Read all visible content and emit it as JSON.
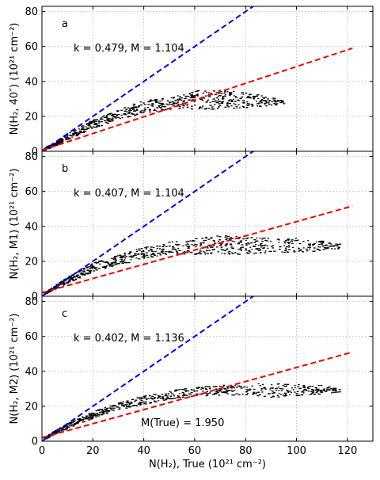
{
  "chart_data": [
    {
      "type": "scatter",
      "panel_label": "a",
      "annotation": "k = 0.479,  M = 1.104",
      "ylabel": "N(H₂, 40″) (10²¹ cm⁻²)",
      "xlabel": "",
      "xlim": [
        0,
        130
      ],
      "ylim": [
        0,
        83
      ],
      "grid": true,
      "lines": [
        {
          "name": "blue dashed",
          "color": "#0000ee",
          "slope": 1.0,
          "intercept": 0.0
        },
        {
          "name": "red dashed",
          "color": "#ee0000",
          "slope": 0.479,
          "intercept": 0.6
        }
      ],
      "scatter_envelope": {
        "x": [
          1,
          5,
          10,
          20,
          30,
          40,
          50,
          60,
          70,
          80,
          90,
          95
        ],
        "y_low": [
          0.6,
          3,
          6.5,
          13,
          18,
          22,
          24,
          24,
          24,
          25,
          26,
          27
        ],
        "y_high": [
          2,
          5,
          10,
          18,
          24,
          29,
          31,
          35,
          35,
          34,
          31,
          29
        ]
      }
    },
    {
      "type": "scatter",
      "panel_label": "b",
      "annotation": "k = 0.407,  M = 1.104",
      "ylabel": "N(H₂,  M1) (10²¹ cm⁻²)",
      "xlabel": "",
      "xlim": [
        0,
        130
      ],
      "ylim": [
        0,
        83
      ],
      "grid": true,
      "lines": [
        {
          "name": "blue dashed",
          "color": "#0000ee",
          "slope": 1.0,
          "intercept": 0.0
        },
        {
          "name": "red dashed",
          "color": "#ee0000",
          "slope": 0.407,
          "intercept": 2.0
        }
      ],
      "scatter_envelope": {
        "x": [
          1,
          5,
          10,
          20,
          30,
          40,
          50,
          60,
          70,
          80,
          90,
          100,
          110,
          117
        ],
        "y_low": [
          1,
          4,
          7,
          14,
          18,
          21,
          24,
          24,
          24,
          24,
          25,
          25,
          26,
          27
        ],
        "y_high": [
          2,
          6,
          11,
          19,
          24,
          28,
          31,
          33,
          35,
          34,
          33,
          33,
          32,
          30
        ]
      }
    },
    {
      "type": "scatter",
      "panel_label": "c",
      "annotation": "k = 0.402,  M = 1.136",
      "annotation2": "M(True) = 1.950",
      "ylabel": "N(H₂,  M2) (10²¹ cm⁻²)",
      "xlabel": "N(H₂),  True (10²¹ cm⁻²)",
      "xlim": [
        0,
        130
      ],
      "ylim": [
        0,
        83
      ],
      "grid": true,
      "lines": [
        {
          "name": "blue dashed",
          "color": "#0000ee",
          "slope": 1.0,
          "intercept": 0.0
        },
        {
          "name": "red dashed",
          "color": "#ee0000",
          "slope": 0.402,
          "intercept": 2.0
        }
      ],
      "scatter_envelope": {
        "x": [
          1,
          5,
          10,
          20,
          30,
          40,
          50,
          60,
          70,
          80,
          90,
          100,
          110,
          117
        ],
        "y_low": [
          1,
          4,
          7,
          13,
          18,
          21,
          24,
          26,
          26,
          26,
          25,
          26,
          27,
          28
        ],
        "y_high": [
          2,
          6,
          10,
          17,
          22,
          26,
          29,
          31,
          32,
          33,
          33,
          33,
          32,
          30
        ]
      }
    }
  ],
  "axes": {
    "x_ticks": [
      0,
      20,
      40,
      60,
      80,
      100,
      120
    ],
    "y_ticks": [
      0,
      20,
      40,
      60,
      80
    ]
  },
  "colors": {
    "blue_line": "#0000ee",
    "red_line": "#ee0000",
    "points": "#000000",
    "grid": "#b0b0b0"
  }
}
